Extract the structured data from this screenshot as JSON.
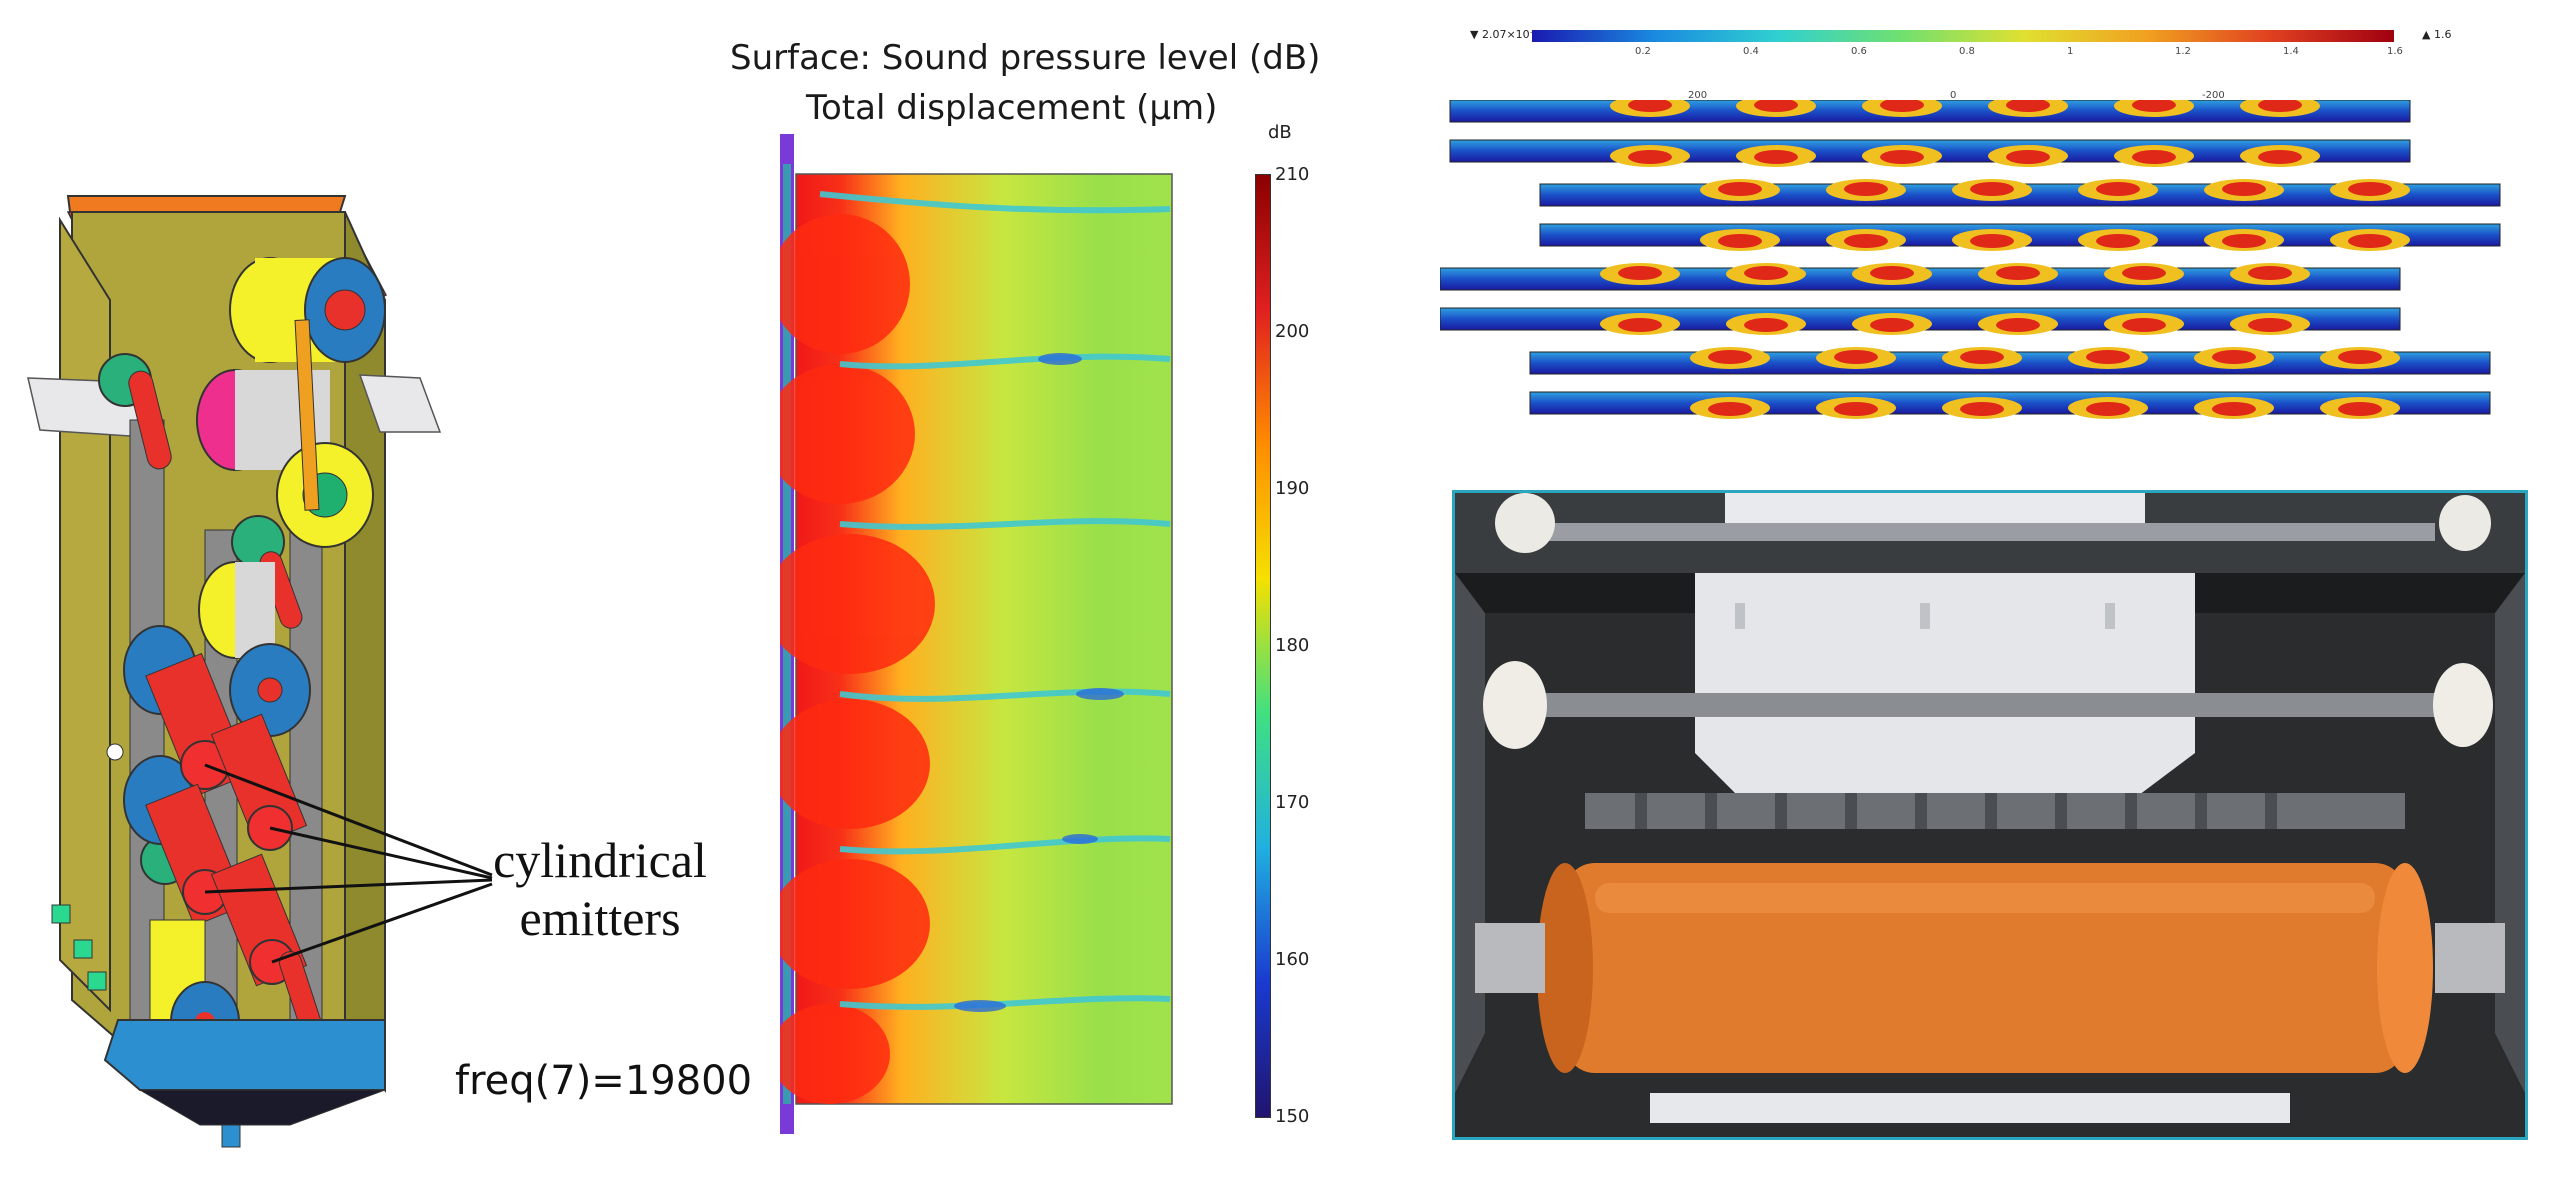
{
  "cad": {
    "label_line1": "cylindrical",
    "label_line2": "emitters",
    "freq": "freq(7)=19800"
  },
  "simulation": {
    "title_line1": "Surface: Sound pressure level (dB)",
    "title_line2": "Total displacement (µm)",
    "colorbar_unit": "dB",
    "colorbar_ticks": [
      "210",
      "200",
      "190",
      "180",
      "170",
      "160",
      "150"
    ],
    "colorbar_colors": [
      "#8b0000",
      "#e02020",
      "#ff8c00",
      "#f5e000",
      "#40e080",
      "#20b0e0",
      "#1a3ad0",
      "#20146e"
    ]
  },
  "modes": {
    "cb_min": "▼ 2.07×10⁻⁶",
    "cb_max": "▲ 1.6",
    "cb_ticks": [
      "0.2",
      "0.4",
      "0.6",
      "0.8",
      "1",
      "1.2",
      "1.4",
      "1.6"
    ],
    "axis_ticks": [
      "200",
      "0",
      "-200"
    ]
  },
  "colors": {
    "frame_olive": "#a8a03a",
    "roller_red": "#e8312b",
    "roller_yellow": "#f4f02a",
    "hub_blue": "#2a7cc0",
    "base_blue": "#2b8fd0",
    "photo_border": "#2aa6c0",
    "orange_roller": "#e07a2c"
  }
}
